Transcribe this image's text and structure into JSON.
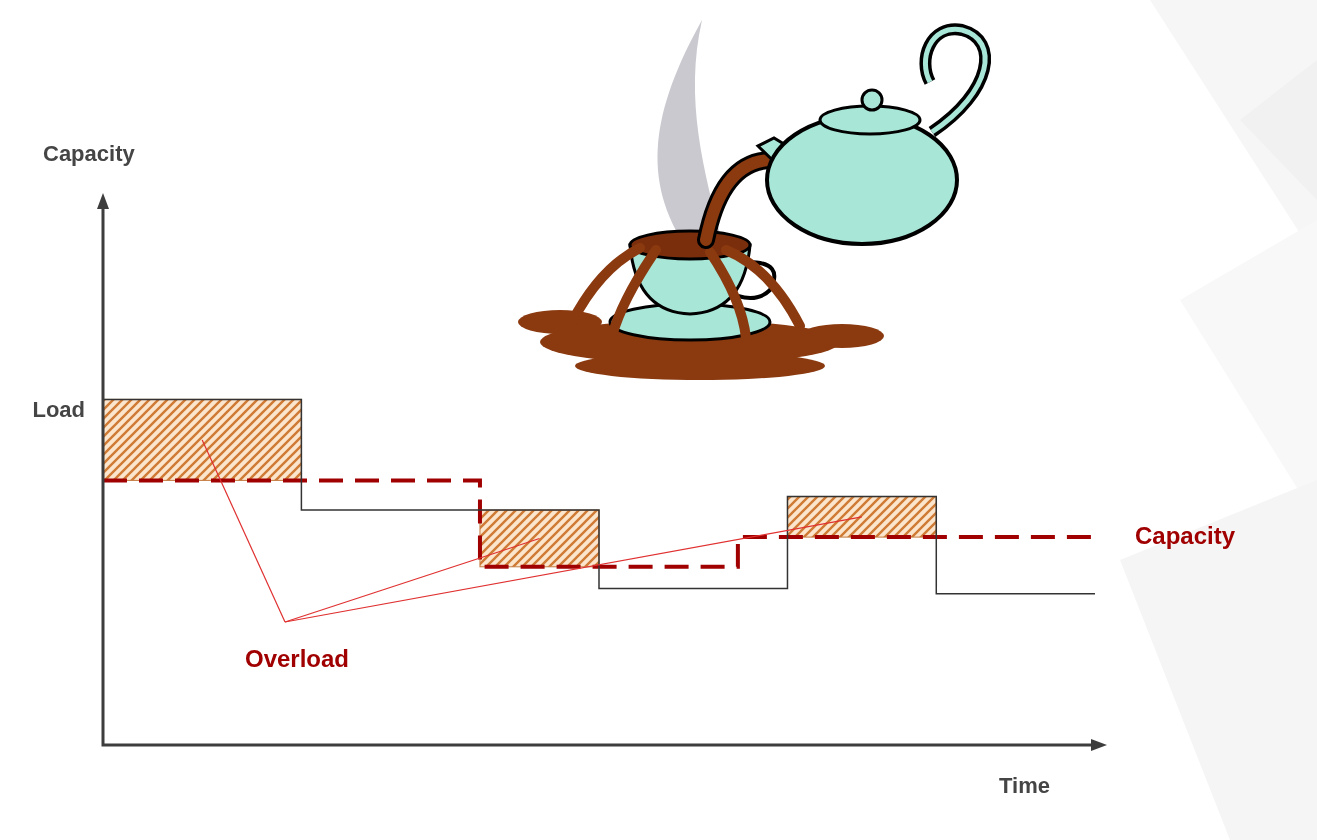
{
  "chart_data": {
    "type": "line",
    "x_label": "Time",
    "y_label": "Capacity",
    "x": [
      0,
      20,
      38,
      50,
      64,
      69,
      84,
      100
    ],
    "series": [
      {
        "name": "Load",
        "color": "#333333",
        "line_style": "solid",
        "values": [
          64,
          43.5,
          43.5,
          29,
          29,
          46,
          28,
          28
        ]
      },
      {
        "name": "Capacity",
        "color": "#a00000",
        "line_style": "dashed",
        "values": [
          49,
          49,
          33,
          33,
          38.5,
          38.5,
          38.5,
          38.5
        ]
      }
    ],
    "xlim": [
      0,
      100
    ],
    "ylim": [
      0,
      100
    ],
    "xticks": [],
    "yticks": [],
    "tick_labels": false,
    "grid": false,
    "annotations": [
      {
        "text": "Overload"
      }
    ]
  }
}
